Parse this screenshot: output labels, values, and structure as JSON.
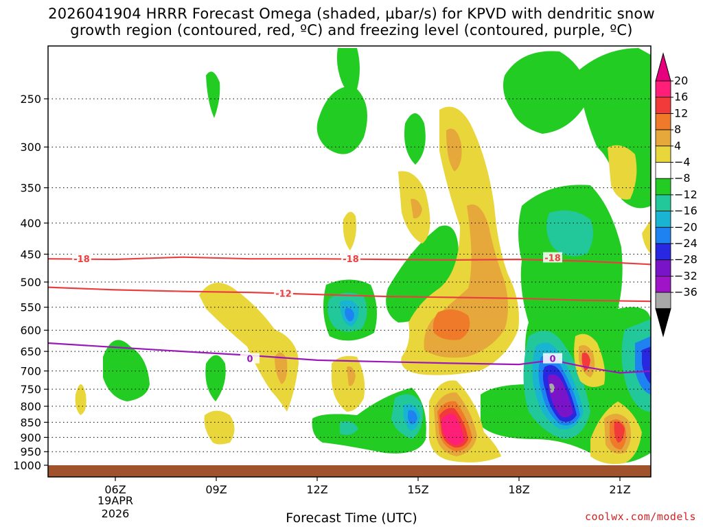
{
  "chart_data": {
    "type": "heatmap",
    "title": "2026041904 HRRR Forecast Omega (shaded, µbar/s) for KPVD with dendritic snow",
    "subtitle": "growth region (contoured, red, ºC) and freezing level (contoured, purple, ºC)",
    "xlabel": "Forecast Time (UTC)",
    "ylabel": "",
    "x_ticks": [
      "06Z",
      "09Z",
      "12Z",
      "15Z",
      "18Z",
      "21Z"
    ],
    "x_date_line1": "19APR",
    "x_date_line2": "2026",
    "y_ticks": [
      250,
      300,
      350,
      400,
      450,
      500,
      550,
      600,
      650,
      700,
      750,
      800,
      850,
      900,
      950,
      1000
    ],
    "y_scale": "log-pressure",
    "grid": true,
    "colorbar": {
      "labels": [
        "20",
        "16",
        "12",
        "8",
        "4",
        "-4",
        "-8",
        "-12",
        "-16",
        "-20",
        "-24",
        "-28",
        "-32",
        "-36"
      ],
      "colors": [
        "#ff1e78",
        "#f23a3a",
        "#ef7a2a",
        "#e6a83a",
        "#e8d63a",
        "#ffffff",
        "#22cc22",
        "#22c79a",
        "#18b4d2",
        "#1e82f0",
        "#2828e0",
        "#7a14c8",
        "#a014c8",
        "#a8a8a8"
      ],
      "top_arrow_color": "#e6007e",
      "bottom_arrow_color": "#000000"
    },
    "contours": [
      {
        "name": "dendritic -18",
        "label": "-18",
        "color": "#e84040",
        "x": [
          "04Z",
          "06Z",
          "08Z",
          "10Z",
          "12Z",
          "14Z",
          "16Z",
          "18Z",
          "20Z",
          "22Z"
        ],
        "p": [
          458,
          459,
          455,
          458,
          458,
          459,
          460,
          459,
          462,
          468
        ]
      },
      {
        "name": "dendritic -12",
        "label": "-12",
        "color": "#e84040",
        "x": [
          "04Z",
          "06Z",
          "08Z",
          "10Z",
          "12Z",
          "14Z",
          "16Z",
          "18Z",
          "20Z",
          "22Z"
        ],
        "p": [
          510,
          515,
          518,
          520,
          524,
          528,
          530,
          532,
          536,
          538
        ]
      },
      {
        "name": "freezing 0",
        "label": "0",
        "color": "#9a18b8",
        "x": [
          "04Z",
          "06Z",
          "08Z",
          "10Z",
          "12Z",
          "14Z",
          "16Z",
          "18Z",
          "19Z",
          "20Z",
          "21Z",
          "22Z"
        ],
        "p": [
          630,
          640,
          650,
          660,
          672,
          676,
          680,
          683,
          672,
          690,
          705,
          700
        ]
      }
    ],
    "contour_labels": [
      {
        "text": "-18",
        "color": "#e84040",
        "x": "05Z",
        "p": 458
      },
      {
        "text": "-18",
        "color": "#e84040",
        "x": "13Z",
        "p": 458
      },
      {
        "text": "-18",
        "color": "#e84040",
        "x": "19Z",
        "p": 456
      },
      {
        "text": "-12",
        "color": "#e84040",
        "x": "11Z",
        "p": 522
      },
      {
        "text": "0",
        "color": "#9a18b8",
        "x": "10Z",
        "p": 668
      },
      {
        "text": "0",
        "color": "#9a18b8",
        "x": "19Z",
        "p": 668
      }
    ],
    "omega_features": [
      {
        "sign": "up",
        "peak": -36,
        "center_x": "19Z",
        "center_p": 780
      },
      {
        "sign": "up",
        "peak": -20,
        "center_x": "15Z",
        "center_p": 840
      },
      {
        "sign": "up",
        "peak": -20,
        "center_x": "13Z",
        "center_p": 560
      },
      {
        "sign": "down",
        "peak": 20,
        "center_x": "16Z",
        "center_p": 880
      },
      {
        "sign": "down",
        "peak": 16,
        "center_x": "21Z",
        "center_p": 880
      },
      {
        "sign": "down",
        "peak": 12,
        "center_x": "16Z",
        "center_p": 580
      },
      {
        "sign": "down",
        "peak": 12,
        "center_x": "20Z",
        "center_p": 690
      },
      {
        "sign": "down",
        "peak": 8,
        "center_x": "17Z",
        "center_p": 450
      }
    ]
  },
  "credit": "coolwx.com/models"
}
